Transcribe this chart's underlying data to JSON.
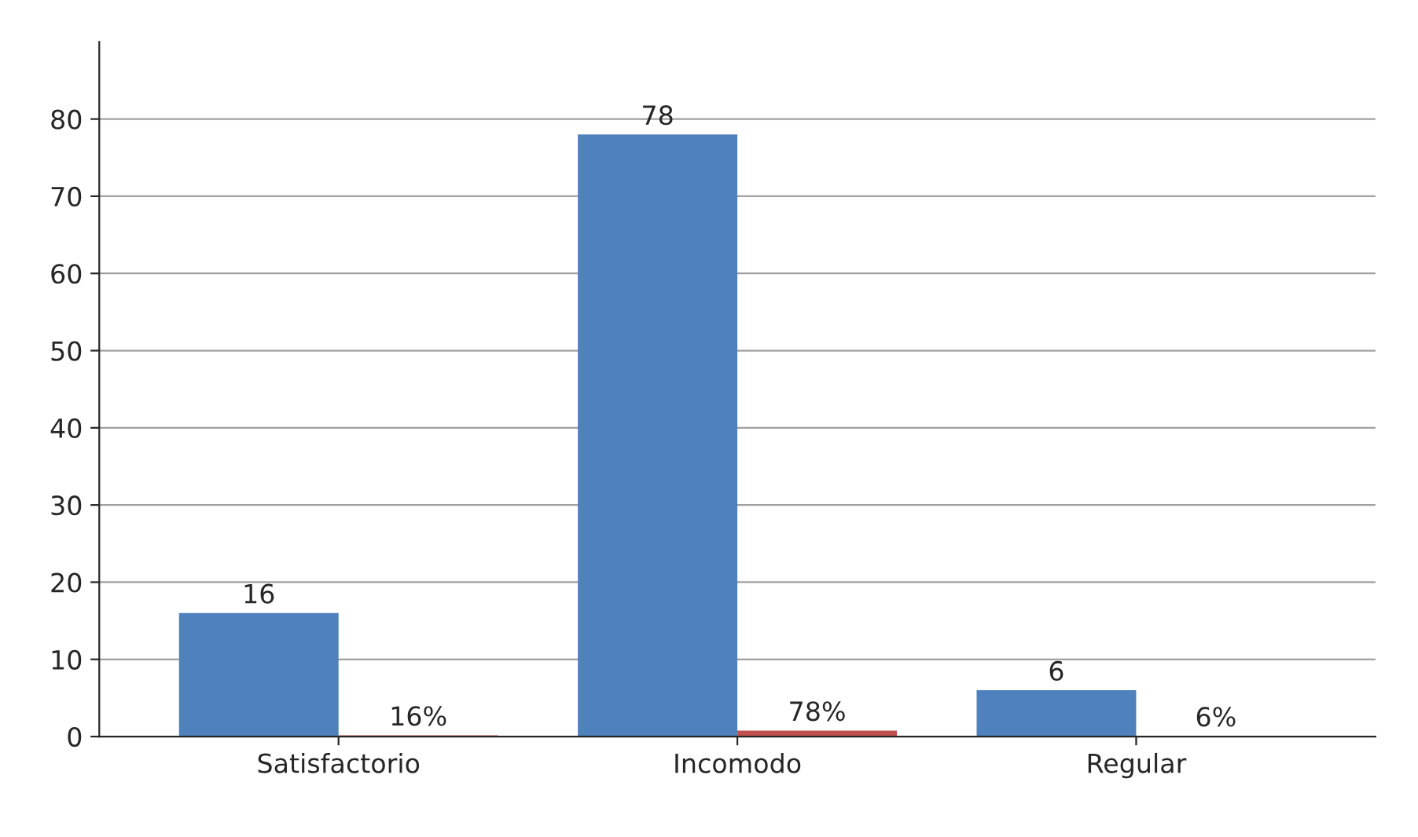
{
  "chart_data": {
    "type": "bar",
    "categories": [
      "Satisfactorio",
      "Incomodo",
      "Regular"
    ],
    "series": [
      {
        "color": "#4f81bd",
        "values": [
          16,
          78,
          6
        ],
        "value_labels": [
          "16",
          "78",
          "6"
        ]
      },
      {
        "color": "#c0504d",
        "values": [
          0.16,
          0.78,
          0.06
        ],
        "value_labels": [
          "16%",
          "78%",
          "6%"
        ]
      }
    ],
    "ylim": [
      0,
      90
    ],
    "yticks": [
      0,
      10,
      20,
      30,
      40,
      50,
      60,
      70,
      80
    ],
    "grid": "y",
    "legend": false
  }
}
